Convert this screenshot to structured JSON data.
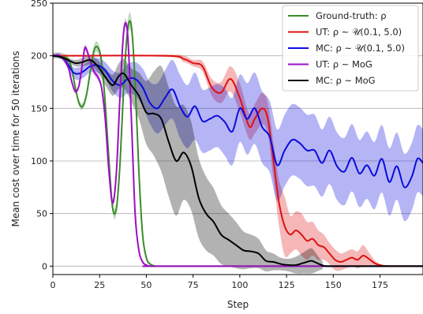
{
  "chart_data": {
    "type": "line",
    "xlabel": "Step",
    "ylabel": "Mean cost over time for 50 iterations",
    "xlim": [
      0,
      198
    ],
    "ylim": [
      -8,
      250
    ],
    "xticks": [
      0,
      25,
      50,
      75,
      100,
      125,
      150,
      175
    ],
    "yticks": [
      0,
      50,
      100,
      150,
      200,
      250
    ],
    "grid": "y-major",
    "legend_position": "top-right",
    "series": [
      {
        "name": "Ground-truth: ρ",
        "color": "#3a8c2b",
        "x": [
          0,
          4,
          8,
          10,
          12,
          14,
          16,
          18,
          20,
          22,
          24,
          26,
          28,
          30,
          32,
          34,
          36,
          38,
          40,
          42,
          44,
          46,
          48,
          50,
          52,
          55,
          60,
          198
        ],
        "y": [
          200,
          200,
          197,
          188,
          170,
          155,
          152,
          163,
          185,
          205,
          208,
          195,
          155,
          100,
          55,
          55,
          100,
          175,
          225,
          228,
          175,
          90,
          30,
          8,
          2,
          0,
          0,
          0
        ],
        "band": [
          3,
          3,
          3,
          3,
          3,
          3,
          3,
          3,
          3,
          5,
          5,
          5,
          5,
          5,
          5,
          5,
          5,
          5,
          8,
          8,
          6,
          5,
          4,
          2,
          1,
          0,
          0,
          0
        ]
      },
      {
        "name": "UT: ρ ~ 𝒰(0.1, 5.0)",
        "color": "#dd1111",
        "x": [
          0,
          60,
          70,
          75,
          80,
          85,
          90,
          95,
          100,
          105,
          108,
          112,
          115,
          118,
          121,
          124,
          127,
          130,
          133,
          136,
          139,
          142,
          145,
          148,
          151,
          154,
          157,
          160,
          163,
          166,
          169,
          172,
          175,
          180,
          198
        ],
        "y": [
          200,
          200,
          197,
          193,
          190,
          170,
          165,
          178,
          160,
          133,
          140,
          150,
          140,
          100,
          60,
          38,
          30,
          34,
          30,
          24,
          26,
          20,
          18,
          12,
          6,
          4,
          6,
          8,
          6,
          10,
          7,
          3,
          1,
          0,
          0
        ],
        "band": [
          0,
          1,
          3,
          3,
          5,
          8,
          10,
          12,
          14,
          12,
          14,
          15,
          15,
          18,
          22,
          28,
          18,
          18,
          20,
          18,
          16,
          14,
          12,
          10,
          10,
          8,
          8,
          8,
          8,
          10,
          6,
          3,
          1,
          0,
          0
        ]
      },
      {
        "name": "MC: ρ ~ 𝒰(0.1, 5.0)",
        "color": "#0b0bdd",
        "x": [
          0,
          5,
          8,
          11,
          14,
          17,
          20,
          24,
          28,
          32,
          36,
          40,
          44,
          48,
          52,
          56,
          60,
          64,
          68,
          72,
          76,
          80,
          84,
          88,
          92,
          96,
          100,
          104,
          108,
          112,
          116,
          120,
          124,
          128,
          132,
          136,
          140,
          144,
          148,
          152,
          156,
          160,
          164,
          168,
          172,
          176,
          180,
          184,
          188,
          192,
          195,
          198
        ],
        "y": [
          200,
          198,
          192,
          184,
          183,
          186,
          190,
          191,
          186,
          176,
          172,
          178,
          178,
          170,
          155,
          150,
          160,
          168,
          152,
          142,
          152,
          138,
          140,
          143,
          137,
          128,
          150,
          140,
          150,
          132,
          123,
          96,
          110,
          120,
          117,
          110,
          110,
          98,
          110,
          95,
          90,
          103,
          88,
          96,
          86,
          102,
          80,
          95,
          75,
          85,
          102,
          98
        ],
        "band": [
          0,
          2,
          4,
          5,
          6,
          6,
          6,
          7,
          8,
          10,
          12,
          14,
          16,
          18,
          20,
          24,
          26,
          28,
          30,
          30,
          32,
          30,
          30,
          30,
          32,
          32,
          32,
          34,
          34,
          34,
          34,
          34,
          34,
          34,
          34,
          34,
          34,
          32,
          32,
          32,
          32,
          32,
          32,
          32,
          32,
          32,
          32,
          32,
          32,
          32,
          32,
          32
        ]
      },
      {
        "name": "UT: ρ ~ MoG",
        "color": "#9b0ec4",
        "x": [
          0,
          4,
          8,
          10,
          12,
          14,
          16,
          17,
          18,
          20,
          22,
          24,
          26,
          28,
          30,
          32,
          34,
          36,
          38,
          40,
          42,
          44,
          46,
          48,
          50,
          52,
          55,
          60,
          198
        ],
        "y": [
          200,
          200,
          190,
          176,
          166,
          172,
          195,
          207,
          206,
          195,
          185,
          180,
          170,
          140,
          90,
          60,
          90,
          165,
          225,
          220,
          140,
          50,
          15,
          4,
          1,
          0,
          0,
          0,
          0
        ],
        "band": [
          2,
          2,
          2,
          2,
          2,
          2,
          3,
          3,
          3,
          3,
          3,
          3,
          3,
          3,
          4,
          4,
          4,
          4,
          4,
          4,
          3,
          3,
          2,
          1,
          0,
          0,
          0,
          0,
          0
        ]
      },
      {
        "name": "MC: ρ ~ MoG",
        "color": "#000000",
        "x": [
          0,
          4,
          8,
          12,
          16,
          20,
          24,
          28,
          32,
          35,
          38,
          42,
          46,
          50,
          54,
          58,
          62,
          66,
          70,
          74,
          78,
          82,
          86,
          90,
          94,
          98,
          102,
          106,
          110,
          114,
          118,
          122,
          126,
          130,
          134,
          138,
          140,
          144,
          150,
          198
        ],
        "y": [
          200,
          199,
          196,
          193,
          194,
          196,
          190,
          180,
          172,
          180,
          183,
          172,
          162,
          146,
          145,
          140,
          118,
          100,
          108,
          95,
          65,
          50,
          42,
          30,
          25,
          20,
          15,
          14,
          12,
          5,
          4,
          2,
          1,
          1,
          3,
          5,
          4,
          1,
          0,
          0
        ],
        "band": [
          0,
          1,
          2,
          3,
          4,
          5,
          6,
          8,
          10,
          12,
          14,
          16,
          22,
          30,
          40,
          50,
          52,
          52,
          45,
          42,
          38,
          35,
          32,
          28,
          25,
          22,
          18,
          16,
          14,
          10,
          8,
          6,
          6,
          8,
          10,
          12,
          10,
          4,
          0,
          0
        ]
      }
    ]
  }
}
